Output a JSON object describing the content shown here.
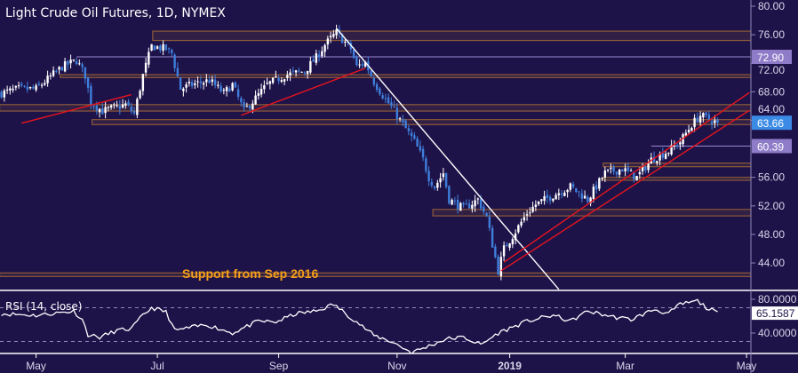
{
  "chart_data": {
    "type": "candlestick",
    "title": "Light Crude Oil Futures, 1D, NYMEX",
    "ylim": [
      38.5,
      80.8
    ],
    "y_ticks": [
      "80.00",
      "76.00",
      "72.00",
      "68.00",
      "64.00",
      "56.00",
      "52.00",
      "48.00",
      "44.00"
    ],
    "y_tick_values": [
      80,
      76,
      72,
      68,
      64,
      56,
      52,
      48,
      44
    ],
    "x_ticks": [
      {
        "label": "May",
        "bar": 12
      },
      {
        "label": "Jul",
        "bar": 54
      },
      {
        "label": "Sep",
        "bar": 96
      },
      {
        "label": "Nov",
        "bar": 137
      },
      {
        "label": "2019",
        "bar": 176
      },
      {
        "label": "Mar",
        "bar": 216
      },
      {
        "label": "May",
        "bar": 258
      }
    ],
    "colors": {
      "background": "#1e1349",
      "up": "#ffffff",
      "down": "#3f7fdc",
      "zone": "#8c5a38",
      "level": "#9a8ad0",
      "trend_red": "#e8141c",
      "trend_white": "#ffffff",
      "annotation": "#f5a01a"
    },
    "close_path": [
      [
        0,
        67.8
      ],
      [
        6,
        68.4
      ],
      [
        12,
        68.4
      ],
      [
        21,
        71.5
      ],
      [
        26,
        72.4
      ],
      [
        29,
        70.3
      ],
      [
        31,
        66.5
      ],
      [
        35,
        65.3
      ],
      [
        43,
        66.2
      ],
      [
        46,
        64.9
      ],
      [
        49,
        70.3
      ],
      [
        52,
        74.4
      ],
      [
        57,
        74.0
      ],
      [
        59,
        73.4
      ],
      [
        62,
        68.4
      ],
      [
        66,
        69.0
      ],
      [
        72,
        69.6
      ],
      [
        77,
        67.8
      ],
      [
        80,
        69.0
      ],
      [
        84,
        65.3
      ],
      [
        88,
        67.1
      ],
      [
        92,
        69.0
      ],
      [
        98,
        70.3
      ],
      [
        105,
        70.9
      ],
      [
        109,
        72.8
      ],
      [
        112,
        74.6
      ],
      [
        116,
        76.3
      ],
      [
        121,
        74.0
      ],
      [
        123,
        71.5
      ],
      [
        126,
        72.1
      ],
      [
        129,
        69.4
      ],
      [
        133,
        66.9
      ],
      [
        135,
        65.9
      ],
      [
        139,
        63.4
      ],
      [
        143,
        61.0
      ],
      [
        146,
        58.5
      ],
      [
        148,
        56.0
      ],
      [
        150,
        54.7
      ],
      [
        153,
        56.6
      ],
      [
        155,
        52.9
      ],
      [
        160,
        51.6
      ],
      [
        165,
        52.9
      ],
      [
        168,
        50.4
      ],
      [
        170,
        46.6
      ],
      [
        172,
        42.9
      ],
      [
        174,
        46.0
      ],
      [
        177,
        47.8
      ],
      [
        182,
        51.0
      ],
      [
        185,
        52.2
      ],
      [
        191,
        53.5
      ],
      [
        197,
        54.7
      ],
      [
        203,
        52.9
      ],
      [
        209,
        56.6
      ],
      [
        215,
        57.2
      ],
      [
        220,
        56.0
      ],
      [
        225,
        58.5
      ],
      [
        231,
        59.7
      ],
      [
        235,
        61.0
      ],
      [
        239,
        63.4
      ],
      [
        242,
        64.7
      ],
      [
        245,
        64.1
      ],
      [
        248,
        63.66
      ]
    ],
    "zones": [
      {
        "top": 76.5,
        "bottom": 75.2,
        "from_bar": 53
      },
      {
        "top": 70.4,
        "bottom": 70.0,
        "from_bar": 21
      },
      {
        "top": 66.2,
        "bottom": 65.3,
        "from_bar": 0
      },
      {
        "top": 64.1,
        "bottom": 63.4,
        "from_bar": 32
      },
      {
        "top": 58.0,
        "bottom": 57.5,
        "from_bar": 209
      },
      {
        "top": 56.0,
        "bottom": 55.6,
        "from_bar": 209
      },
      {
        "top": 51.5,
        "bottom": 50.6,
        "from_bar": 150
      },
      {
        "top": 42.6,
        "bottom": 42.1,
        "from_bar": 0
      }
    ],
    "levels": [
      {
        "price": 72.9,
        "from_bar": 26
      },
      {
        "price": 60.39,
        "from_bar": 225
      }
    ],
    "trendlines": [
      {
        "color": "red",
        "from": [
          7,
          63.6
        ],
        "to": [
          45,
          67.6
        ]
      },
      {
        "color": "red",
        "from": [
          83,
          64.7
        ],
        "to": [
          126,
          71.3
        ]
      },
      {
        "color": "white",
        "from": [
          116,
          76.9
        ],
        "to": [
          193,
          40.3
        ]
      },
      {
        "color": "red",
        "from": [
          173,
          42.9
        ],
        "to": [
          259,
          65.4
        ]
      },
      {
        "color": "red",
        "from": [
          174,
          44.1
        ],
        "to": [
          259,
          67.9
        ]
      }
    ],
    "price_labels": [
      {
        "text": "72.90",
        "price": 72.9,
        "color": "#8e7cc8"
      },
      {
        "text": "63.66",
        "price": 63.66,
        "color": "#3b8be6"
      },
      {
        "text": "60.39",
        "price": 60.39,
        "color": "#8e7cc8"
      }
    ],
    "annotation": {
      "text": "Support from Sep 2016",
      "bar": 63,
      "price": 42.35
    },
    "rsi": {
      "label": "RSI (14, close)",
      "current": "65.1587",
      "current_value": 65.16,
      "y_ticks": [
        "80.0000",
        "40.0000"
      ],
      "y_tick_values": [
        80,
        40
      ],
      "guides": [
        70,
        30
      ],
      "path": [
        [
          0,
          63
        ],
        [
          12,
          61
        ],
        [
          25,
          66
        ],
        [
          28,
          56
        ],
        [
          30,
          38
        ],
        [
          34,
          35
        ],
        [
          40,
          43
        ],
        [
          45,
          45
        ],
        [
          49,
          61
        ],
        [
          52,
          70
        ],
        [
          57,
          65
        ],
        [
          60,
          43
        ],
        [
          71,
          50
        ],
        [
          80,
          40
        ],
        [
          89,
          54
        ],
        [
          95,
          53
        ],
        [
          102,
          63
        ],
        [
          109,
          66
        ],
        [
          115,
          74
        ],
        [
          122,
          56
        ],
        [
          129,
          37
        ],
        [
          135,
          30
        ],
        [
          142,
          17
        ],
        [
          146,
          22
        ],
        [
          154,
          33
        ],
        [
          160,
          35
        ],
        [
          166,
          26
        ],
        [
          172,
          40
        ],
        [
          182,
          54
        ],
        [
          191,
          61
        ],
        [
          197,
          54
        ],
        [
          203,
          66
        ],
        [
          212,
          59
        ],
        [
          218,
          56
        ],
        [
          226,
          68
        ],
        [
          231,
          63
        ],
        [
          235,
          74
        ],
        [
          241,
          78
        ],
        [
          245,
          68
        ],
        [
          248,
          65.2
        ]
      ]
    }
  }
}
